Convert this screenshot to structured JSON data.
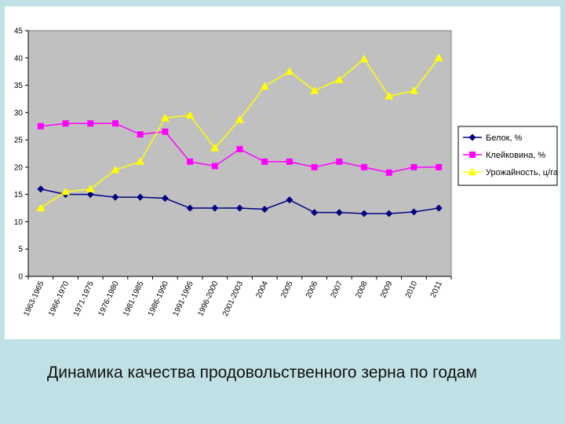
{
  "caption": "Динамика качества продовольственного зерна по годам",
  "colors": {
    "plot_background": "#c0c0c0",
    "belok": "#000080",
    "kleykovina": "#ff00ff",
    "urozhaynost": "#ffff00"
  },
  "chart_data": {
    "type": "line",
    "title": "",
    "xlabel": "",
    "ylabel": "",
    "ylim": [
      0,
      45
    ],
    "yticks": [
      0,
      5,
      10,
      15,
      20,
      25,
      30,
      35,
      40,
      45
    ],
    "grid": false,
    "legend_position": "right",
    "categories": [
      "1963-1965",
      "1966-1970",
      "1971-1975",
      "1976-1980",
      "1981-1985",
      "1986-1990",
      "1991-1995",
      "1996-2000",
      "2001-2003",
      "2004",
      "2005",
      "2006",
      "2007",
      "2008",
      "2009",
      "2010",
      "2011"
    ],
    "series": [
      {
        "name": "Белок, %",
        "marker": "diamond",
        "values": [
          16,
          15,
          15,
          14.5,
          14.5,
          14.3,
          12.5,
          12.5,
          12.5,
          12.3,
          14,
          11.7,
          11.7,
          11.5,
          11.5,
          11.8,
          12.5
        ]
      },
      {
        "name": "Клейковина, %",
        "marker": "square",
        "values": [
          27.5,
          28,
          28,
          28,
          26,
          26.5,
          21,
          20.2,
          23.3,
          21,
          21,
          20,
          21,
          20,
          19,
          20,
          20
        ]
      },
      {
        "name": "Урожайность, ц/га",
        "marker": "triangle",
        "values": [
          12.5,
          15.5,
          16,
          19.5,
          21,
          29,
          29.5,
          23.5,
          28.7,
          34.8,
          37.5,
          34,
          36,
          39.8,
          33,
          34,
          40
        ]
      }
    ]
  }
}
